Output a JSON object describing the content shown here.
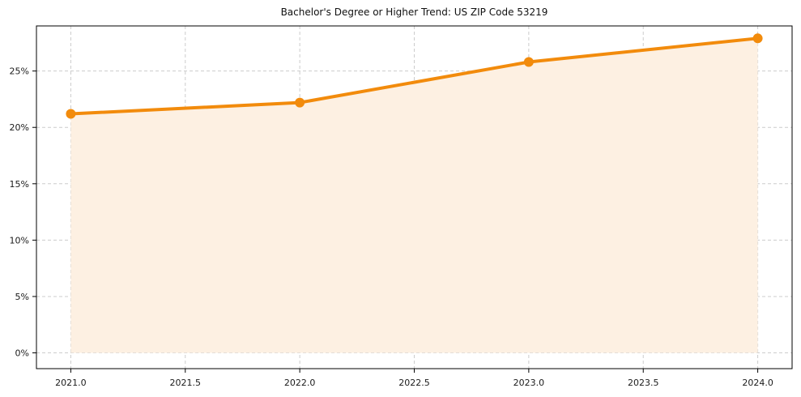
{
  "chart_data": {
    "type": "line",
    "title": "Bachelor's Degree or Higher Trend: US ZIP Code 53219",
    "series": [
      {
        "name": "Bachelor's Degree or Higher (%)",
        "x": [
          2021,
          2022,
          2023,
          2024
        ],
        "values": [
          21.2,
          22.2,
          25.8,
          27.9
        ]
      }
    ],
    "xlabel": "",
    "ylabel": "",
    "xlim": [
      2020.85,
      2024.15
    ],
    "ylim": [
      -1.4,
      29.0
    ],
    "x_ticks": [
      2021.0,
      2021.5,
      2022.0,
      2022.5,
      2023.0,
      2023.5,
      2024.0
    ],
    "x_tick_labels": [
      "2021.0",
      "2021.5",
      "2022.0",
      "2022.5",
      "2023.0",
      "2023.5",
      "2024.0"
    ],
    "y_ticks": [
      0,
      5,
      10,
      15,
      20,
      25
    ],
    "y_tick_labels": [
      "0%",
      "5%",
      "10%",
      "15%",
      "20%",
      "25%"
    ],
    "grid": true,
    "grid_style": "dashed",
    "legend": "none",
    "colors": {
      "line": "#f28b0c",
      "marker": "#f28b0c",
      "area_fill": "#fdf0e2",
      "grid": "#cccccc",
      "axis_border": "#000000",
      "text": "#1a1a1a",
      "plot_background": "#ffffff"
    },
    "marker": "circle"
  }
}
